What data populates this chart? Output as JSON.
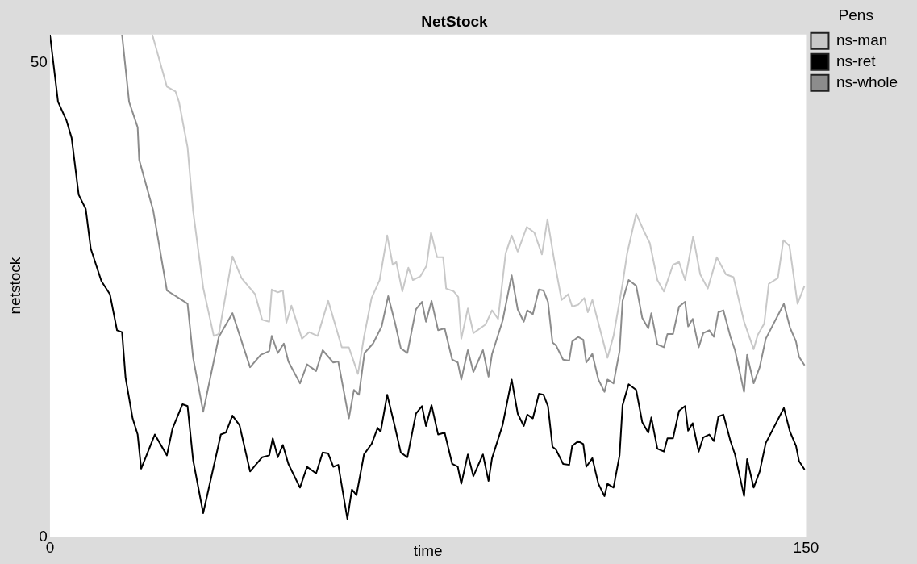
{
  "chart_data": {
    "type": "line",
    "title": "NetStock",
    "xlabel": "time",
    "ylabel": "netstock",
    "legend_title": "Pens",
    "legend": "top right",
    "xlim": [
      0,
      150
    ],
    "ylim": [
      0,
      53
    ],
    "xticks": [
      0,
      150
    ],
    "yticks": [
      0,
      50
    ],
    "grid": false,
    "marker": "none",
    "line_style": "solid",
    "series": [
      {
        "name": "ns-man",
        "color": "#c8c8c8",
        "x": [
          20.3,
          23.2,
          24.9,
          25.6,
          27.3,
          28.4,
          30.4,
          32.5,
          33.5,
          36.2,
          38,
          40.7,
          42.1,
          43.5,
          44,
          45.2,
          46.2,
          46.9,
          47.9,
          50,
          51.4,
          53.1,
          55.2,
          57.9,
          59.3,
          61.1,
          62.3,
          63.8,
          65.4,
          66.9,
          68,
          68.7,
          69.9,
          71.1,
          72,
          73.5,
          74.7,
          75.6,
          76.8,
          78,
          78.6,
          80.1,
          81,
          81.6,
          82.9,
          84,
          86.4,
          87.7,
          88.9,
          90.4,
          91.6,
          92.8,
          94.6,
          96.1,
          97.6,
          98.7,
          100,
          101.5,
          102.8,
          103.6,
          104.8,
          106,
          106.7,
          107.6,
          110.6,
          111.8,
          113.6,
          114.5,
          116.3,
          117.8,
          119,
          120.5,
          121.8,
          123.6,
          124.8,
          126,
          127.6,
          129,
          130.5,
          132.3,
          134.1,
          135.6,
          137.7,
          139.6,
          140.4,
          141.7,
          142.6,
          144.4,
          145.5,
          146.7,
          148.3,
          149.7
        ],
        "values": [
          53,
          47.5,
          47.0,
          45.9,
          41.1,
          34.4,
          26.3,
          21.2,
          21.4,
          29.6,
          27.3,
          25.6,
          22.9,
          22.7,
          26.1,
          25.8,
          26,
          22.6,
          24.4,
          20.9,
          21.6,
          21.2,
          24.9,
          20.0,
          20.0,
          17.2,
          21.1,
          25.2,
          27.1,
          31.8,
          28.7,
          29.0,
          25.9,
          28.4,
          27.1,
          27.5,
          28.6,
          32.1,
          29.5,
          29.5,
          26.2,
          25.9,
          25.3,
          20.9,
          24.1,
          21.5,
          22.4,
          23.9,
          23.0,
          29.9,
          31.8,
          30.1,
          32.7,
          32.1,
          29.8,
          33.5,
          29.3,
          25.0,
          25.6,
          24.3,
          24.5,
          25.2,
          23.7,
          25.0,
          18.9,
          21.2,
          26.7,
          29.9,
          34.1,
          32.3,
          31.0,
          27.1,
          25.9,
          28.7,
          29.0,
          27.1,
          31.7,
          27.7,
          26.2,
          29.5,
          27.7,
          27.4,
          22.7,
          19.8,
          21.3,
          22.5,
          26.7,
          27.3,
          31.3,
          30.7,
          24.6,
          26.5
        ]
      },
      {
        "name": "ns-ret",
        "color": "#000000",
        "x": [
          0,
          1.6,
          3.3,
          4.3,
          5.7,
          7.1,
          8.1,
          10.2,
          11.9,
          13.3,
          14.3,
          15,
          16.4,
          17.4,
          18.1,
          20.8,
          23.2,
          24.3,
          26.3,
          27.3,
          28.4,
          30.4,
          33.9,
          34.9,
          36.2,
          37.6,
          39.7,
          42.1,
          43.5,
          44.2,
          45.2,
          46.2,
          47.3,
          49.6,
          51,
          52.8,
          54.1,
          55.2,
          56.2,
          57.2,
          59,
          59.9,
          60.8,
          62.3,
          63.8,
          65,
          65.6,
          66.9,
          68.4,
          69.6,
          70.9,
          72.6,
          73.8,
          74.6,
          75.7,
          77,
          78.3,
          79.8,
          80.9,
          81.6,
          82.9,
          84,
          85.9,
          87,
          87.7,
          89.8,
          91.6,
          92.8,
          94,
          94.7,
          95.8,
          97,
          97.9,
          98.8,
          99.7,
          100.4,
          101.8,
          103,
          103.6,
          104.8,
          105.8,
          106.4,
          107.6,
          108.8,
          110,
          110.6,
          111.8,
          113,
          113.6,
          114.8,
          116.3,
          117.5,
          118.7,
          119.3,
          120.5,
          121.8,
          122.5,
          123.6,
          124.8,
          126,
          126.6,
          127.5,
          128.7,
          129.6,
          130.8,
          131.7,
          132.6,
          133.6,
          135,
          135.9,
          137.7,
          138.3,
          139.6,
          140.8,
          142,
          145.6,
          146.8,
          148,
          148.6,
          149.7
        ],
        "values": [
          53,
          45.9,
          43.9,
          42.1,
          36.1,
          34.6,
          30.4,
          27.0,
          25.6,
          21.8,
          21.6,
          16.8,
          12.5,
          10.8,
          7.2,
          10.8,
          8.6,
          11.4,
          14.0,
          13.8,
          8.1,
          2.5,
          10.8,
          11.0,
          12.8,
          11.8,
          6.9,
          8.4,
          8.6,
          10.4,
          8.4,
          9.7,
          7.7,
          5.2,
          7.4,
          6.7,
          8.9,
          8.8,
          7.4,
          7.6,
          1.9,
          5.0,
          4.4,
          8.7,
          9.8,
          11.5,
          11.1,
          15.0,
          11.7,
          8.9,
          8.4,
          13.0,
          13.8,
          11.7,
          13.9,
          10.8,
          11,
          7.7,
          7.4,
          5.6,
          8.7,
          6.4,
          8.7,
          5.9,
          8.3,
          11.8,
          16.6,
          13.0,
          11.7,
          12.9,
          12.5,
          15.1,
          15.0,
          13.8,
          9.5,
          9.2,
          7.7,
          7.6,
          9.6,
          10.1,
          9.8,
          7.4,
          8.3,
          5.6,
          4.3,
          5.6,
          5.2,
          8.6,
          13.9,
          16.1,
          15.5,
          12.1,
          11.0,
          12.6,
          9.3,
          9.0,
          10.4,
          10.4,
          13.3,
          13.8,
          11.2,
          12.0,
          9.0,
          10.5,
          10.8,
          10.1,
          12.7,
          12.9,
          10.1,
          8.7,
          4.3,
          8.2,
          5.2,
          6.9,
          9.9,
          13.6,
          11.1,
          9.6,
          8.0,
          7.1
        ]
      },
      {
        "name": "ns-whole",
        "color": "#8c8c8c",
        "x": [
          14.3,
          15.7,
          17.4,
          17.7,
          20.5,
          23.2,
          27.3,
          28.4,
          30.4,
          33.5,
          36.2,
          39.7,
          41.8,
          43.5,
          44,
          45.2,
          46.4,
          47.3,
          49.6,
          51,
          52.8,
          54.1,
          56.2,
          57.2,
          59.3,
          60.3,
          61.3,
          62.4,
          64.1,
          65.8,
          67.1,
          68.4,
          69.6,
          70.9,
          72.6,
          73.8,
          74.6,
          75.7,
          77,
          78.3,
          79.8,
          80.9,
          81.6,
          82.9,
          84,
          85.9,
          87,
          87.7,
          89.8,
          91.6,
          92.8,
          94,
          94.7,
          95.8,
          97,
          97.9,
          98.8,
          99.7,
          100.4,
          101.8,
          103,
          103.6,
          104.8,
          105.8,
          106.4,
          107.6,
          108.8,
          110,
          110.6,
          111.8,
          113,
          113.6,
          114.8,
          116.3,
          117.5,
          118.7,
          119.3,
          120.5,
          121.8,
          122.5,
          123.6,
          124.8,
          126,
          126.6,
          127.5,
          128.7,
          129.6,
          130.8,
          131.7,
          132.6,
          133.6,
          135,
          135.9,
          137.7,
          138.3,
          139.6,
          140.8,
          142,
          145.6,
          146.8,
          148,
          148.6,
          149.7
        ],
        "values": [
          53,
          45.9,
          43.2,
          39.8,
          34.4,
          26.0,
          24.6,
          18.9,
          13.2,
          21.1,
          23.6,
          17.9,
          19.2,
          19.6,
          21.2,
          19.4,
          20.4,
          18.5,
          16.2,
          18.2,
          17.5,
          19.7,
          18.4,
          18.5,
          12.5,
          15.5,
          15.0,
          19.4,
          20.4,
          22.2,
          25.4,
          22.7,
          19.9,
          19.4,
          24.0,
          24.8,
          22.7,
          24.9,
          21.8,
          22,
          18.7,
          18.4,
          16.6,
          19.7,
          17.4,
          19.7,
          16.9,
          19.3,
          22.8,
          27.6,
          24.0,
          22.7,
          23.9,
          23.5,
          26.1,
          26.0,
          24.8,
          20.5,
          20.2,
          18.7,
          18.6,
          20.6,
          21.1,
          20.8,
          18.4,
          19.3,
          16.6,
          15.3,
          16.6,
          16.2,
          19.6,
          24.9,
          27.1,
          26.5,
          23.1,
          22.0,
          23.6,
          20.3,
          20.0,
          21.4,
          21.4,
          24.3,
          24.8,
          22.2,
          23.0,
          20.0,
          21.5,
          21.8,
          21.1,
          23.7,
          23.9,
          21.1,
          19.7,
          15.3,
          19.2,
          16.2,
          17.9,
          20.9,
          24.6,
          22.1,
          20.6,
          19.0,
          18.1
        ]
      }
    ]
  }
}
